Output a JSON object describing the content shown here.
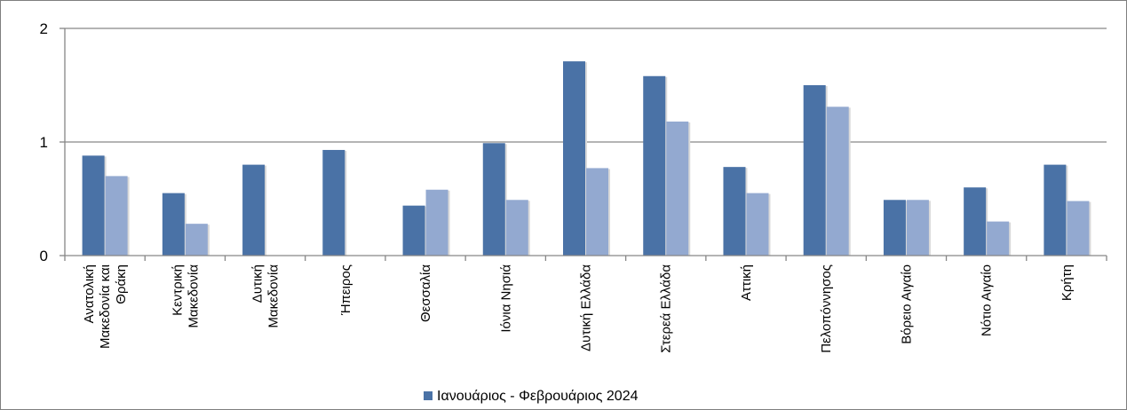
{
  "chart_data": {
    "type": "bar",
    "categories": [
      "Ανατολική Μακεδονία και Θράκη",
      "Κεντρική Μακεδονία",
      "Δυτική Μακεδονία",
      "Ήπειρος",
      "Θεσσαλία",
      "Ιόνια Νησιά",
      "Δυτική Ελλάδα",
      "Στερεά Ελλάδα",
      "Αττική",
      "Πελοπόννησος",
      "Βόρειο Αιγαίο",
      "Νότιο Αιγαίο",
      "Κρήτη"
    ],
    "category_label_lines": [
      [
        "Ανατολική",
        "Μακεδονία και",
        "Θράκη"
      ],
      [
        "Κεντρική",
        "Μακεδονία"
      ],
      [
        "Δυτική",
        "Μακεδονία"
      ],
      [
        "Ήπειρος"
      ],
      [
        "Θεσσαλία"
      ],
      [
        "Ιόνια Νησιά"
      ],
      [
        "Δυτική Ελλάδα"
      ],
      [
        "Στερεά Ελλάδα"
      ],
      [
        "Αττική"
      ],
      [
        "Πελοπόννησος"
      ],
      [
        "Βόρειο Αιγαίο"
      ],
      [
        "Νότιο Αιγαίο"
      ],
      [
        "Κρήτη"
      ]
    ],
    "series": [
      {
        "name": "Ιανουάριος - Φεβρουάριος 2024",
        "color": "#4a72a6",
        "values": [
          0.88,
          0.55,
          0.8,
          0.93,
          0.44,
          0.99,
          1.71,
          1.58,
          0.78,
          1.5,
          0.49,
          0.6,
          0.8
        ]
      },
      {
        "color": "#93a9d0",
        "values": [
          0.7,
          0.28,
          null,
          null,
          0.58,
          0.49,
          0.77,
          1.18,
          0.55,
          1.31,
          0.49,
          0.3,
          0.48
        ]
      }
    ],
    "ylim": [
      0,
      2
    ],
    "yticks": [
      0,
      1,
      2
    ],
    "ytick_labels": [
      "0",
      "1",
      "2"
    ],
    "grid": true,
    "legend_position": "bottom"
  }
}
